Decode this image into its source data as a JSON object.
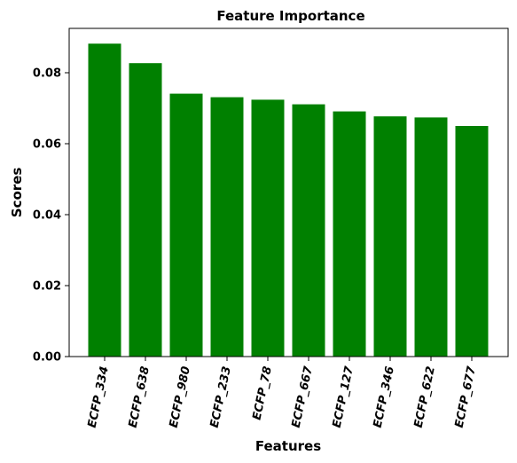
{
  "chart_data": {
    "type": "bar",
    "title": "Feature Importance",
    "xlabel": "Features",
    "ylabel": "Scores",
    "categories": [
      "ECFP_334",
      "ECFP_638",
      "ECFP_980",
      "ECFP_233",
      "ECFP_78",
      "ECFP_667",
      "ECFP_127",
      "ECFP_346",
      "ECFP_622",
      "ECFP_677"
    ],
    "values": [
      0.0882,
      0.0827,
      0.0741,
      0.0731,
      0.0724,
      0.0711,
      0.0691,
      0.0677,
      0.0674,
      0.065
    ],
    "ylim": [
      0,
      0.0925
    ],
    "yticks": [
      0.0,
      0.02,
      0.04,
      0.06,
      0.08
    ],
    "ytick_labels": [
      "0.00",
      "0.02",
      "0.04",
      "0.06",
      "0.08"
    ],
    "bar_color": "#008000",
    "grid": false,
    "legend": "none"
  }
}
